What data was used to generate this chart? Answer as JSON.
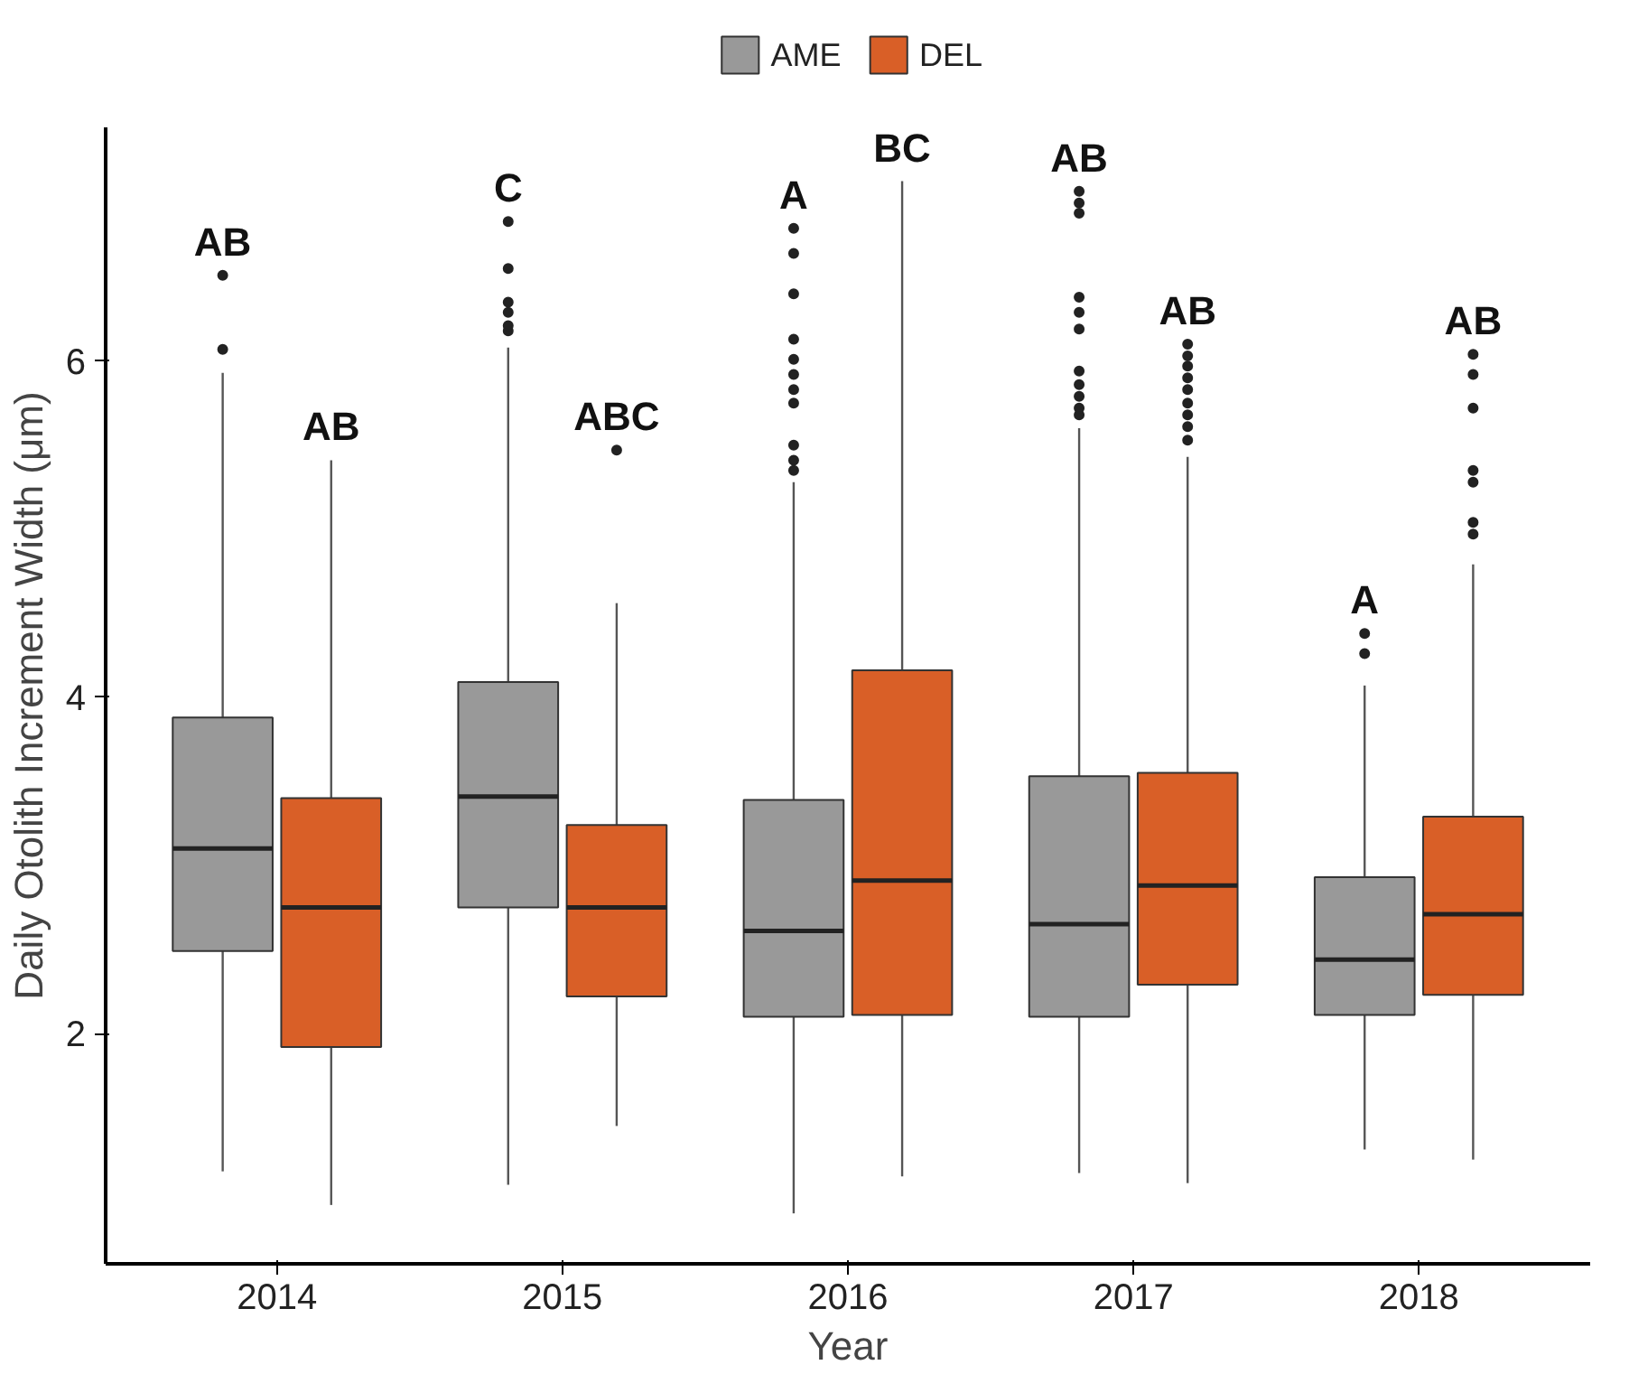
{
  "chart_data": {
    "type": "box",
    "xlabel": "Year",
    "ylabel": "Daily Otolith Increment Width (μm)",
    "categories": [
      "2014",
      "2015",
      "2016",
      "2017",
      "2018"
    ],
    "ylim": [
      0.63,
      7.39
    ],
    "yticks": [
      2,
      4,
      6
    ],
    "grid": false,
    "legend": "top",
    "series": [
      {
        "name": "AME",
        "color": "#999999",
        "boxes": [
          {
            "low": 1.18,
            "q1": 2.49,
            "median": 3.1,
            "q3": 3.88,
            "high": 5.93,
            "outliers": [
              6.07,
              6.51
            ]
          },
          {
            "low": 1.1,
            "q1": 2.75,
            "median": 3.41,
            "q3": 4.09,
            "high": 6.08,
            "outliers": [
              6.18,
              6.21,
              6.29,
              6.35,
              6.55,
              6.83
            ]
          },
          {
            "low": 0.93,
            "q1": 2.1,
            "median": 2.61,
            "q3": 3.39,
            "high": 5.28,
            "outliers": [
              5.35,
              5.41,
              5.5,
              5.75,
              5.83,
              5.92,
              6.01,
              6.13,
              6.4,
              6.64,
              6.79
            ]
          },
          {
            "low": 1.17,
            "q1": 2.1,
            "median": 2.65,
            "q3": 3.53,
            "high": 5.6,
            "outliers": [
              5.68,
              5.72,
              5.79,
              5.86,
              5.94,
              6.19,
              6.29,
              6.38,
              6.88,
              6.94,
              7.01
            ]
          },
          {
            "low": 1.31,
            "q1": 2.11,
            "median": 2.44,
            "q3": 2.93,
            "high": 4.07,
            "outliers": [
              4.26,
              4.38
            ]
          }
        ]
      },
      {
        "name": "DEL",
        "color": "#d95f27",
        "boxes": [
          {
            "low": 0.98,
            "q1": 1.92,
            "median": 2.75,
            "q3": 3.4,
            "high": 5.41
          },
          {
            "low": 1.45,
            "q1": 2.22,
            "median": 2.75,
            "q3": 3.24,
            "high": 4.56,
            "outliers": [
              5.47
            ]
          },
          {
            "low": 1.15,
            "q1": 2.11,
            "median": 2.91,
            "q3": 4.16,
            "high": 7.07
          },
          {
            "low": 1.11,
            "q1": 2.29,
            "median": 2.88,
            "q3": 3.55,
            "high": 5.43,
            "outliers": [
              5.53,
              5.61,
              5.68,
              5.75,
              5.83,
              5.9,
              5.97,
              6.03,
              6.1
            ]
          },
          {
            "low": 1.25,
            "q1": 2.23,
            "median": 2.71,
            "q3": 3.29,
            "high": 4.79,
            "outliers": [
              4.97,
              5.04,
              5.28,
              5.35,
              5.72,
              5.92,
              6.04
            ]
          }
        ]
      }
    ],
    "annotations": [
      "AB",
      "AB",
      "C",
      "ABC",
      "A",
      "BC",
      "AB",
      "AB",
      "A",
      "AB"
    ]
  }
}
